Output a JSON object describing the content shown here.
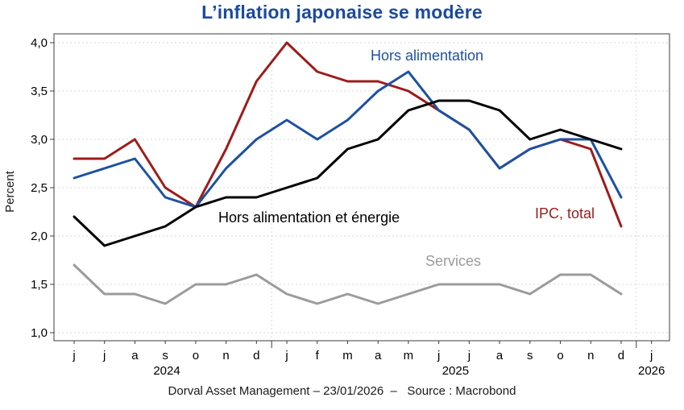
{
  "title": "L’inflation japonaise se modère",
  "footer": "Dorval Asset Management – 23/01/2026  –   Source : Macrobond",
  "chart_data": {
    "type": "line",
    "title": "L’inflation japonaise se modère",
    "xlabel": "",
    "ylabel": "Percent",
    "ylim": [
      1.0,
      4.0
    ],
    "ytick_step": 0.5,
    "grid": "horizontal dashed gridlines every 0.5, vertical dashed gridlines at year boundaries",
    "legend_position": "inline labels next to lines",
    "x_range_note": "monthly data from June 2024 to December 2025; axis extends to January 2026",
    "categories": [
      "j",
      "j",
      "a",
      "s",
      "o",
      "n",
      "d",
      "j",
      "f",
      "m",
      "a",
      "m",
      "j",
      "j",
      "a",
      "s",
      "o",
      "n",
      "d",
      "j"
    ],
    "yticks": [
      {
        "label": "4,0",
        "value": 4.0
      },
      {
        "label": "3,5",
        "value": 3.5
      },
      {
        "label": "3,0",
        "value": 3.0
      },
      {
        "label": "2,5",
        "value": 2.5
      },
      {
        "label": "2,0",
        "value": 2.0
      },
      {
        "label": "1,5",
        "value": 1.5
      },
      {
        "label": "1,0",
        "value": 1.0
      }
    ],
    "year_labels": [
      {
        "label": "2024",
        "month_index": 3.05
      },
      {
        "label": "2025",
        "month_index": 12.55
      },
      {
        "label": "2026",
        "month_index": 19
      }
    ],
    "series": [
      {
        "name": "Services",
        "color": "#9b9b9b",
        "values": [
          1.7,
          1.4,
          1.4,
          1.3,
          1.5,
          1.5,
          1.6,
          1.4,
          1.3,
          1.4,
          1.3,
          1.4,
          1.5,
          1.5,
          1.5,
          1.4,
          1.6,
          1.6,
          1.4
        ]
      },
      {
        "name": "IPC, total",
        "color": "#9e1b1b",
        "values": [
          2.8,
          2.8,
          3.0,
          2.5,
          2.3,
          2.9,
          3.6,
          4.0,
          3.7,
          3.6,
          3.6,
          3.5,
          3.3,
          3.1,
          2.7,
          2.9,
          3.0,
          2.9,
          2.1
        ]
      },
      {
        "name": "Hors alimentation",
        "color": "#1d51a1",
        "values": [
          2.6,
          2.7,
          2.8,
          2.4,
          2.3,
          2.7,
          3.0,
          3.2,
          3.0,
          3.2,
          3.5,
          3.7,
          3.3,
          3.1,
          2.7,
          2.9,
          3.0,
          3.0,
          2.4
        ]
      },
      {
        "name": "Hors alimentation et énergie",
        "color": "#000000",
        "values": [
          2.2,
          1.9,
          2.0,
          2.1,
          2.3,
          2.4,
          2.4,
          2.5,
          2.6,
          2.9,
          3.0,
          3.3,
          3.4,
          3.4,
          3.3,
          3.0,
          3.1,
          3.0,
          2.9
        ]
      }
    ]
  }
}
